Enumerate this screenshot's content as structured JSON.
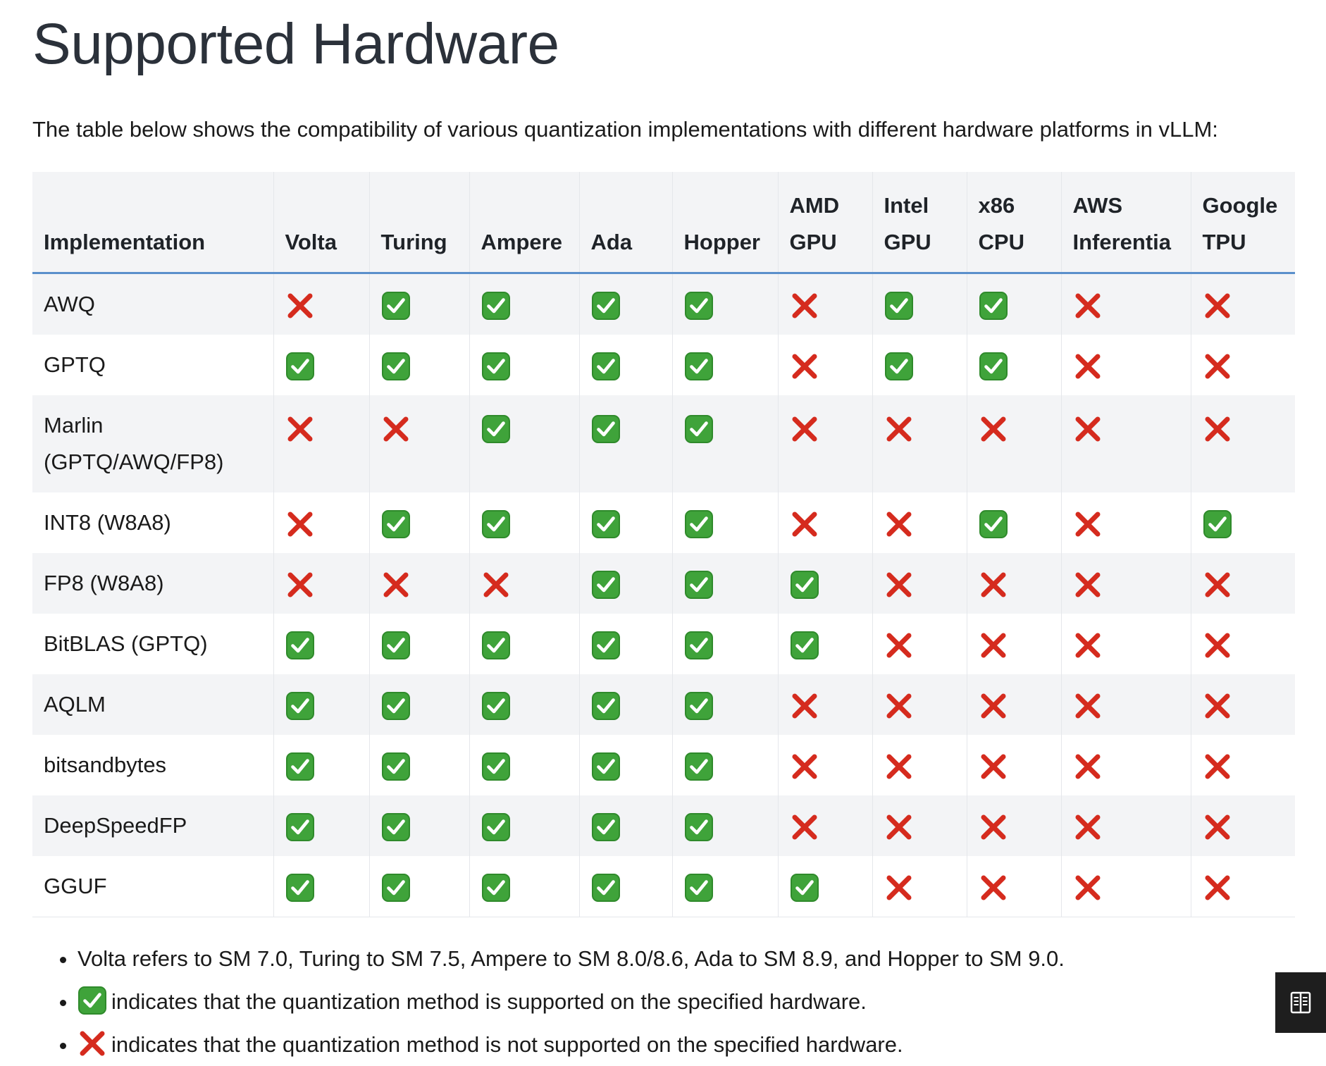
{
  "page": {
    "title": "Supported Hardware",
    "intro": "The table below shows the compatibility of various quantization implementations with different hardware platforms in vLLM:"
  },
  "table": {
    "headers": [
      [
        "Implementation"
      ],
      [
        "Volta"
      ],
      [
        "Turing"
      ],
      [
        "Ampere"
      ],
      [
        "Ada"
      ],
      [
        "Hopper"
      ],
      [
        "AMD",
        "GPU"
      ],
      [
        "Intel",
        "GPU"
      ],
      [
        "x86",
        "CPU"
      ],
      [
        "AWS",
        "Inferentia"
      ],
      [
        "Google",
        "TPU"
      ]
    ],
    "rows": [
      {
        "name": [
          "AWQ"
        ],
        "support": [
          false,
          true,
          true,
          true,
          true,
          false,
          true,
          true,
          false,
          false
        ]
      },
      {
        "name": [
          "GPTQ"
        ],
        "support": [
          true,
          true,
          true,
          true,
          true,
          false,
          true,
          true,
          false,
          false
        ]
      },
      {
        "name": [
          "Marlin",
          "(GPTQ/AWQ/FP8)"
        ],
        "support": [
          false,
          false,
          true,
          true,
          true,
          false,
          false,
          false,
          false,
          false
        ]
      },
      {
        "name": [
          "INT8 (W8A8)"
        ],
        "support": [
          false,
          true,
          true,
          true,
          true,
          false,
          false,
          true,
          false,
          true
        ]
      },
      {
        "name": [
          "FP8 (W8A8)"
        ],
        "support": [
          false,
          false,
          false,
          true,
          true,
          true,
          false,
          false,
          false,
          false
        ]
      },
      {
        "name": [
          "BitBLAS (GPTQ)"
        ],
        "support": [
          true,
          true,
          true,
          true,
          true,
          true,
          false,
          false,
          false,
          false
        ]
      },
      {
        "name": [
          "AQLM"
        ],
        "support": [
          true,
          true,
          true,
          true,
          true,
          false,
          false,
          false,
          false,
          false
        ]
      },
      {
        "name": [
          "bitsandbytes"
        ],
        "support": [
          true,
          true,
          true,
          true,
          true,
          false,
          false,
          false,
          false,
          false
        ]
      },
      {
        "name": [
          "DeepSpeedFP"
        ],
        "support": [
          true,
          true,
          true,
          true,
          true,
          false,
          false,
          false,
          false,
          false
        ]
      },
      {
        "name": [
          "GGUF"
        ],
        "support": [
          true,
          true,
          true,
          true,
          true,
          true,
          false,
          false,
          false,
          false
        ]
      }
    ]
  },
  "notes": {
    "sm_note": "Volta refers to SM 7.0, Turing to SM 7.5, Ampere to SM 8.0/8.6, Ada to SM 8.9, and Hopper to SM 9.0.",
    "supported_note": "indicates that the quantization method is supported on the specified hardware.",
    "unsupported_note": "indicates that the quantization method is not supported on the specified hardware."
  },
  "icons": {
    "supported": "check-mark-icon",
    "unsupported": "cross-mark-icon",
    "reader": "book-icon"
  },
  "colors": {
    "check_green": "#3fa33a",
    "cross_red": "#d52b1e",
    "header_rule": "#5a8fcb",
    "stripe": "#f3f4f6"
  }
}
